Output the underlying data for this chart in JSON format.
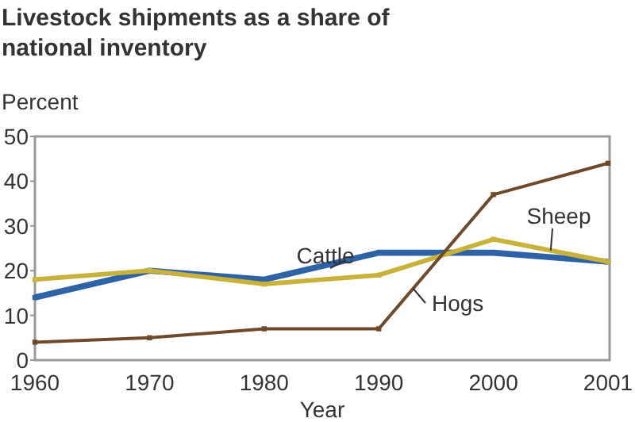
{
  "chart_data": {
    "type": "line",
    "title": "Livestock shipments as a share of national inventory",
    "ylabel": "Percent",
    "xlabel": "Year",
    "categories": [
      "1960",
      "1970",
      "1980",
      "1990",
      "2000",
      "2001"
    ],
    "series": [
      {
        "name": "Cattle",
        "color": "#2e62a6",
        "values": [
          14,
          20,
          18,
          24,
          24,
          22
        ]
      },
      {
        "name": "Sheep",
        "color": "#c9b23a",
        "values": [
          18,
          20,
          17,
          19,
          27,
          22
        ]
      },
      {
        "name": "Hogs",
        "color": "#6e4a2a",
        "values": [
          4,
          5,
          7,
          7,
          37,
          44
        ]
      }
    ],
    "ylim": [
      0,
      50
    ],
    "yticks": [
      0,
      10,
      20,
      30,
      40,
      50
    ],
    "grid": false,
    "legend": false,
    "marker": "square",
    "line_style": "solid"
  }
}
